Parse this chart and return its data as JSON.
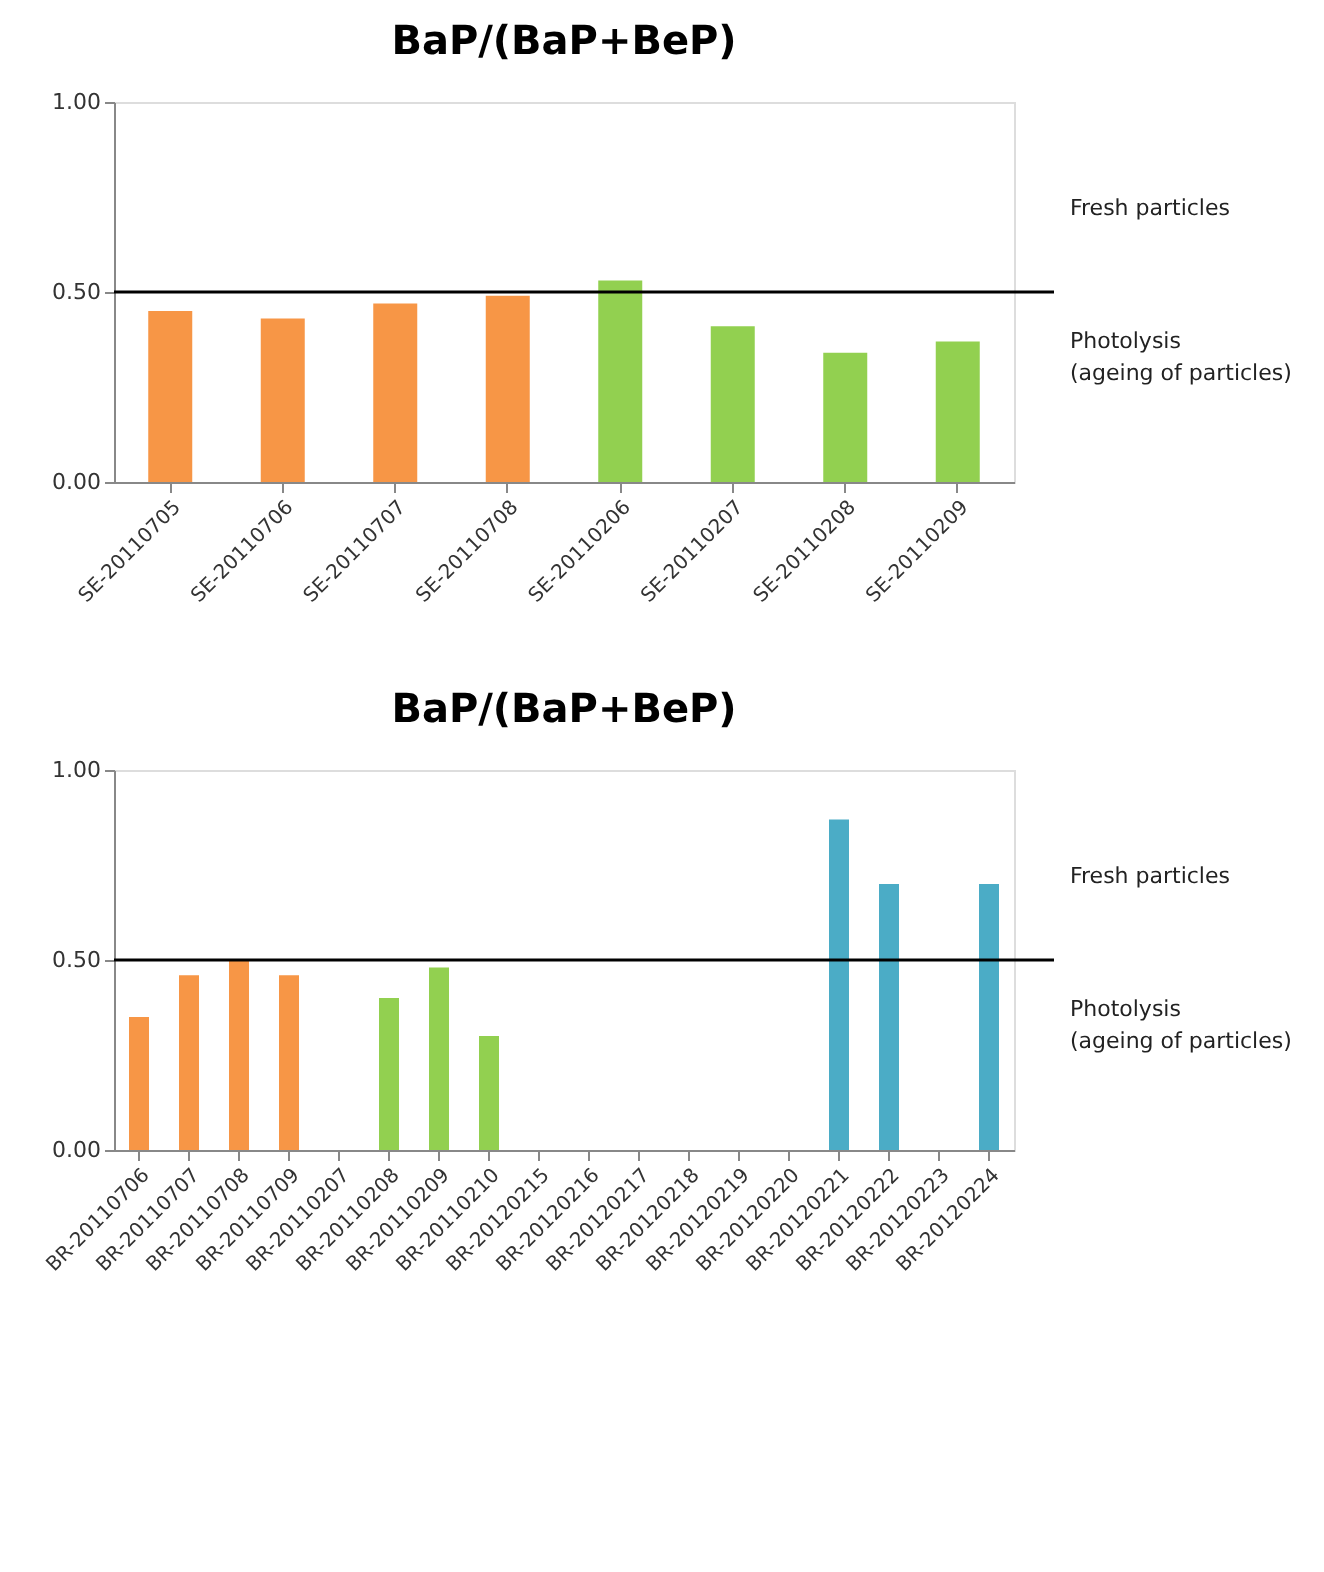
{
  "chart_data": [
    {
      "type": "bar",
      "title": "BaP/(BaP+BeP)",
      "categories": [
        "SE-20110705",
        "SE-20110706",
        "SE-20110707",
        "SE-20110708",
        "SE-20110206",
        "SE-20110207",
        "SE-20110208",
        "SE-20110209"
      ],
      "values": [
        0.45,
        0.43,
        0.47,
        0.49,
        0.53,
        0.41,
        0.34,
        0.37
      ],
      "colors": [
        "#f79646",
        "#f79646",
        "#f79646",
        "#f79646",
        "#92d050",
        "#92d050",
        "#92d050",
        "#92d050"
      ],
      "ylim": [
        0,
        1
      ],
      "yticks": [
        {
          "value": 0,
          "label": "0.00"
        },
        {
          "value": 0.5,
          "label": "0.50"
        },
        {
          "value": 1,
          "label": "1.00"
        }
      ],
      "ref_lines": [
        {
          "axis": "y",
          "value": 0.5,
          "color": "#000000"
        }
      ],
      "annotations": [
        "Fresh particles",
        "Photolysis\n(ageing of particles)"
      ],
      "grid": false
    },
    {
      "type": "bar",
      "title": "BaP/(BaP+BeP)",
      "categories": [
        "BR-20110706",
        "BR-20110707",
        "BR-20110708",
        "BR-20110709",
        "BR-20110207",
        "BR-20110208",
        "BR-20110209",
        "BR-20110210",
        "BR-20120215",
        "BR-20120216",
        "BR-20120217",
        "BR-20120218",
        "BR-20120219",
        "BR-20120220",
        "BR-20120221",
        "BR-20120222",
        "BR-20120223",
        "BR-20120224"
      ],
      "values": [
        0.35,
        0.46,
        0.5,
        0.46,
        null,
        0.4,
        0.48,
        0.3,
        null,
        null,
        null,
        null,
        null,
        null,
        0.87,
        0.7,
        null,
        0.7
      ],
      "colors": [
        "#f79646",
        "#f79646",
        "#f79646",
        "#f79646",
        "#f79646",
        "#92d050",
        "#92d050",
        "#92d050",
        "#4bacc6",
        "#4bacc6",
        "#4bacc6",
        "#4bacc6",
        "#4bacc6",
        "#4bacc6",
        "#4bacc6",
        "#4bacc6",
        "#4bacc6",
        "#4bacc6"
      ],
      "ylim": [
        0,
        1
      ],
      "yticks": [
        {
          "value": 0,
          "label": "0.00"
        },
        {
          "value": 0.5,
          "label": "0.50"
        },
        {
          "value": 1,
          "label": "1.00"
        }
      ],
      "ref_lines": [
        {
          "axis": "y",
          "value": 0.5,
          "color": "#000000"
        }
      ],
      "annotations": [
        "Fresh particles",
        "Photolysis\n(ageing of particles)"
      ],
      "grid": false
    }
  ]
}
